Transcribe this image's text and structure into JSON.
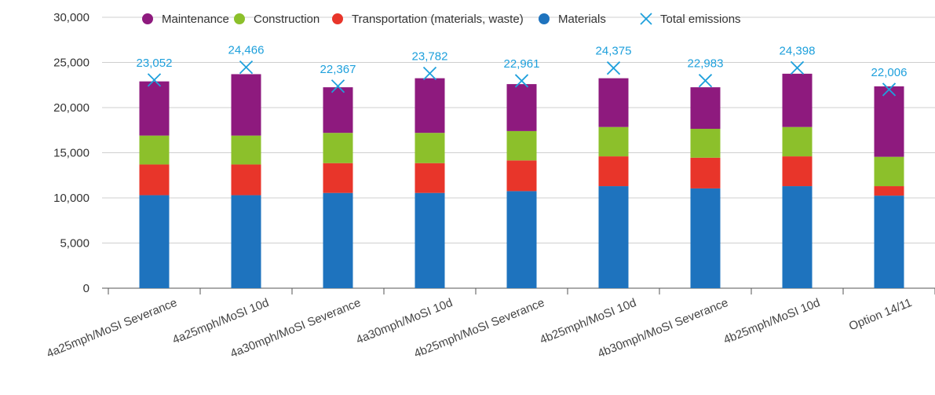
{
  "chart_data": {
    "type": "bar",
    "stacked": true,
    "categories": [
      "4a25mph/MoSI Severance",
      "4a25mph/MoSI 10d",
      "4a30mph/MoSI Severance",
      "4a30mph/MoSI 10d",
      "4b25mph/MoSI Severance",
      "4b25mph/MoSI 10d",
      "4b30mph/MoSI Severance",
      "4b25mph/MoSI 10d",
      "Option 14/11"
    ],
    "series": [
      {
        "name": "Materials",
        "color": "#1e73be",
        "values": [
          10300,
          10300,
          10550,
          10550,
          10750,
          11300,
          11050,
          11300,
          10250
        ]
      },
      {
        "name": "Transportation (materials, waste)",
        "color": "#e8352a",
        "values": [
          3400,
          3400,
          3300,
          3300,
          3400,
          3300,
          3400,
          3300,
          1050
        ]
      },
      {
        "name": "Construction",
        "color": "#8cc02b",
        "values": [
          3200,
          3200,
          3350,
          3350,
          3250,
          3250,
          3200,
          3250,
          3250
        ]
      },
      {
        "name": "Maintenance",
        "color": "#8e1a7e",
        "values": [
          6000,
          6800,
          5050,
          6050,
          5200,
          5400,
          4600,
          5900,
          7800
        ]
      }
    ],
    "total": {
      "name": "Total emissions",
      "color": "#1ea0dc",
      "values": [
        23052,
        24466,
        22367,
        23782,
        22961,
        24375,
        22983,
        24398,
        22006
      ],
      "labels": [
        "23,052",
        "24,466",
        "22,367",
        "23,782",
        "22,961",
        "24,375",
        "22,983",
        "24,398",
        "22,006"
      ]
    },
    "legend_order": [
      "Maintenance",
      "Construction",
      "Transportation (materials, waste)",
      "Materials",
      "Total emissions"
    ],
    "legend_position": "top",
    "ylim": [
      0,
      30000
    ],
    "yticks": [
      0,
      5000,
      10000,
      15000,
      20000,
      25000,
      30000
    ],
    "ytick_labels": [
      "0",
      "5,000",
      "10,000",
      "15,000",
      "20,000",
      "25,000",
      "30,000"
    ],
    "grid": true
  }
}
